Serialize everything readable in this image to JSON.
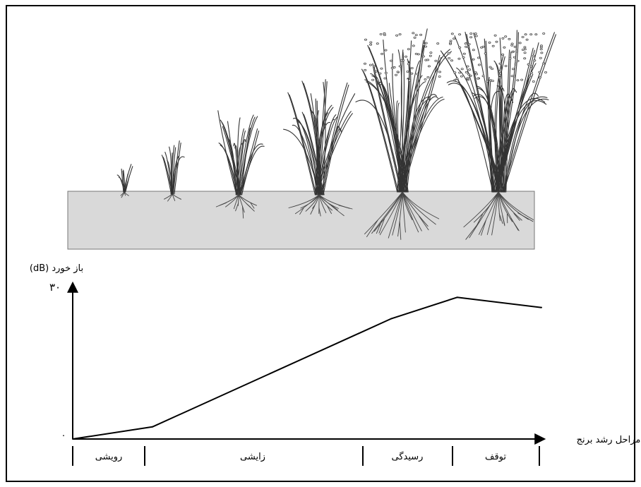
{
  "chart_data": {
    "type": "line",
    "ylabel": "باز خورد (dB)",
    "xlabel": "مراحل رشد برنج",
    "ylim": [
      0,
      30
    ],
    "yticks": [
      "۰",
      "۳۰"
    ],
    "stages": [
      "رویشی",
      "زایشی",
      "رسیدگی",
      "توقف"
    ],
    "series": [
      {
        "x": [
          0,
          0.17,
          0.68,
          0.82,
          1.0
        ],
        "values": [
          0,
          2.4,
          23.8,
          28.0,
          26.0
        ]
      }
    ],
    "grid": false,
    "colors": {
      "line": "#000000",
      "soil": "#d9d9d9"
    }
  }
}
